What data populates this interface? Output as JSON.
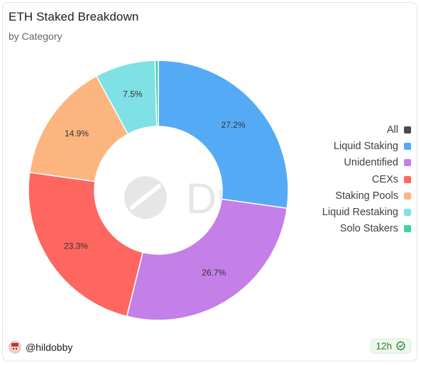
{
  "header": {
    "title": "ETH Staked Breakdown",
    "subtitle": "by Category"
  },
  "watermark": "Dune",
  "chart_data": {
    "type": "pie",
    "donut": true,
    "title": "ETH Staked Breakdown",
    "subtitle": "by Category",
    "categories": [
      "Liquid Staking",
      "Unidentified",
      "CEXs",
      "Staking Pools",
      "Liquid Restaking",
      "Solo Stakers"
    ],
    "values": [
      27.2,
      26.7,
      23.3,
      14.9,
      7.5,
      0.4
    ],
    "labels": [
      "27.2%",
      "26.7%",
      "23.3%",
      "14.9%",
      "7.5%",
      ""
    ],
    "colors": [
      "#55aaf5",
      "#c47fe8",
      "#fe6760",
      "#fdb580",
      "#7fe0e6",
      "#40d39e"
    ],
    "legend_position": "right",
    "legend": [
      {
        "label": "All",
        "color": "#4a4a4a"
      },
      {
        "label": "Liquid Staking",
        "color": "#55aaf5"
      },
      {
        "label": "Unidentified",
        "color": "#c47fe8"
      },
      {
        "label": "CEXs",
        "color": "#fe6760"
      },
      {
        "label": "Staking Pools",
        "color": "#fdb580"
      },
      {
        "label": "Liquid Restaking",
        "color": "#7fe0e6"
      },
      {
        "label": "Solo Stakers",
        "color": "#40d39e"
      }
    ]
  },
  "footer": {
    "user": "@hildobby",
    "refresh": "12h",
    "refresh_color": "#2e7d32"
  }
}
